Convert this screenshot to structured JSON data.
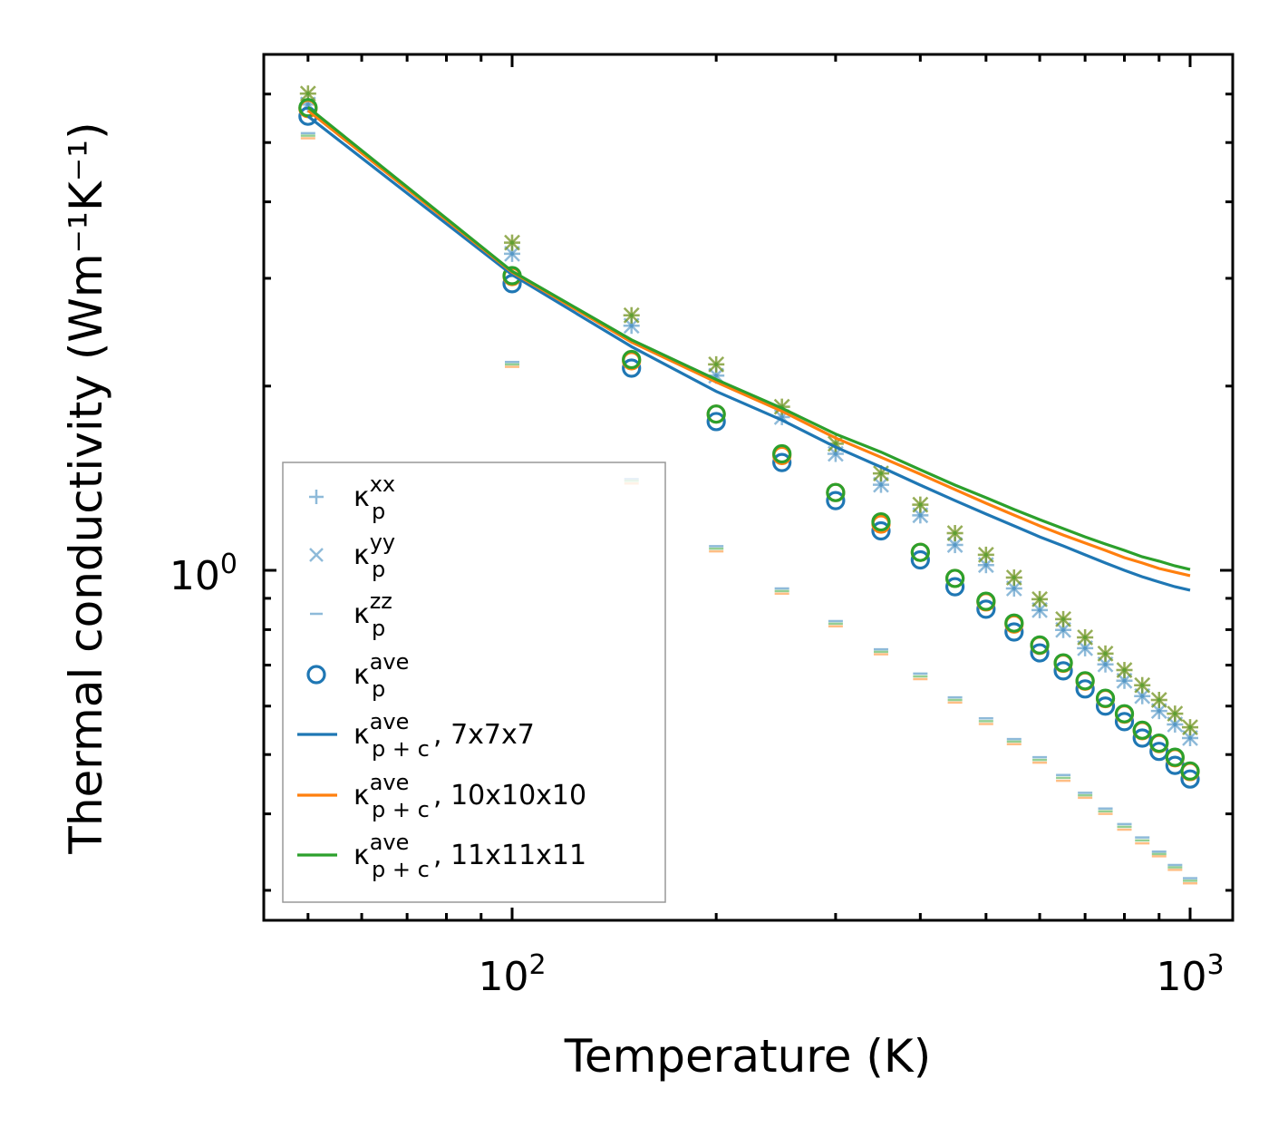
{
  "chart_data": {
    "type": "scatter",
    "xscale": "log",
    "yscale": "log",
    "xlabel": "Temperature (K)",
    "ylabel": "Thermal conductivity (Wm⁻¹K⁻¹)",
    "xlim": [
      43,
      1156
    ],
    "ylim": [
      0.268,
      6.97
    ],
    "x_major_ticks": [
      {
        "value": 100,
        "base": "10",
        "exp": "2"
      },
      {
        "value": 1000,
        "base": "10",
        "exp": "3"
      }
    ],
    "x_minor_ticks": [
      50,
      60,
      70,
      80,
      90,
      200,
      300,
      400,
      500,
      600,
      700,
      800,
      900
    ],
    "y_major_ticks": [
      {
        "value": 1,
        "base": "10",
        "exp": "0"
      }
    ],
    "y_minor_ticks": [
      0.3,
      0.4,
      0.5,
      0.6,
      0.7,
      0.8,
      0.9,
      2,
      3,
      4,
      5,
      6
    ],
    "x": [
      50,
      100,
      150,
      200,
      250,
      300,
      350,
      400,
      450,
      500,
      550,
      600,
      650,
      700,
      750,
      800,
      850,
      900,
      950,
      1000
    ],
    "meshes": [
      {
        "name": "7x7x7",
        "color": "#1f77b4",
        "xx": [
          5.77,
          3.29,
          2.51,
          2.08,
          1.78,
          1.55,
          1.38,
          1.23,
          1.1,
          1.02,
          0.934,
          0.861,
          0.799,
          0.746,
          0.702,
          0.66,
          0.623,
          0.589,
          0.56,
          0.532
        ],
        "yy": [
          5.77,
          3.29,
          2.51,
          2.08,
          1.78,
          1.55,
          1.38,
          1.23,
          1.1,
          1.02,
          0.934,
          0.861,
          0.799,
          0.746,
          0.702,
          0.66,
          0.623,
          0.589,
          0.56,
          0.532
        ],
        "zz": [
          5.18,
          2.19,
          1.41,
          1.095,
          0.934,
          0.826,
          0.743,
          0.678,
          0.62,
          0.573,
          0.53,
          0.495,
          0.463,
          0.433,
          0.408,
          0.385,
          0.366,
          0.347,
          0.33,
          0.314
        ],
        "ave": [
          5.52,
          2.94,
          2.14,
          1.75,
          1.5,
          1.3,
          1.16,
          1.04,
          0.94,
          0.864,
          0.793,
          0.733,
          0.685,
          0.64,
          0.6,
          0.566,
          0.532,
          0.506,
          0.48,
          0.456
        ],
        "p_plus_c": [
          5.52,
          3.04,
          2.32,
          1.96,
          1.76,
          1.59,
          1.475,
          1.378,
          1.3,
          1.236,
          1.182,
          1.134,
          1.096,
          1.06,
          1.028,
          1.0,
          0.976,
          0.957,
          0.94,
          0.928
        ]
      },
      {
        "name": "10x10x10",
        "color": "#ff7f0e",
        "xx": [
          6.01,
          3.43,
          2.61,
          2.17,
          1.85,
          1.61,
          1.44,
          1.28,
          1.15,
          1.06,
          0.973,
          0.897,
          0.832,
          0.777,
          0.731,
          0.687,
          0.649,
          0.614,
          0.583,
          0.554
        ],
        "yy": [
          6.01,
          3.43,
          2.61,
          2.17,
          1.85,
          1.61,
          1.44,
          1.28,
          1.15,
          1.06,
          0.973,
          0.897,
          0.832,
          0.777,
          0.731,
          0.687,
          0.649,
          0.614,
          0.583,
          0.554
        ],
        "zz": [
          5.08,
          2.15,
          1.386,
          1.074,
          0.916,
          0.81,
          0.729,
          0.664,
          0.608,
          0.561,
          0.52,
          0.485,
          0.453,
          0.425,
          0.4,
          0.377,
          0.358,
          0.341,
          0.324,
          0.308
        ],
        "ave": [
          5.68,
          3.02,
          2.2,
          1.8,
          1.54,
          1.34,
          1.19,
          1.07,
          0.97,
          0.888,
          0.817,
          0.754,
          0.705,
          0.659,
          0.617,
          0.582,
          0.547,
          0.521,
          0.494,
          0.469
        ],
        "p_plus_c": [
          5.64,
          3.07,
          2.36,
          2.03,
          1.82,
          1.645,
          1.53,
          1.436,
          1.355,
          1.287,
          1.231,
          1.182,
          1.142,
          1.108,
          1.078,
          1.049,
          1.028,
          1.007,
          0.993,
          0.98
        ]
      },
      {
        "name": "11x11x11",
        "color": "#2ca02c",
        "xx": [
          6.01,
          3.43,
          2.61,
          2.17,
          1.85,
          1.61,
          1.44,
          1.28,
          1.15,
          1.06,
          0.973,
          0.897,
          0.832,
          0.777,
          0.731,
          0.687,
          0.649,
          0.614,
          0.583,
          0.554
        ],
        "yy": [
          6.01,
          3.43,
          2.61,
          2.17,
          1.85,
          1.61,
          1.44,
          1.28,
          1.15,
          1.06,
          0.973,
          0.897,
          0.832,
          0.777,
          0.731,
          0.687,
          0.649,
          0.614,
          0.583,
          0.554
        ],
        "zz": [
          5.13,
          2.17,
          1.4,
          1.085,
          0.925,
          0.818,
          0.736,
          0.671,
          0.614,
          0.567,
          0.525,
          0.49,
          0.458,
          0.429,
          0.404,
          0.381,
          0.362,
          0.344,
          0.327,
          0.311
        ],
        "ave": [
          5.7,
          3.03,
          2.21,
          1.8,
          1.55,
          1.34,
          1.2,
          1.07,
          0.97,
          0.89,
          0.82,
          0.755,
          0.706,
          0.66,
          0.618,
          0.583,
          0.548,
          0.522,
          0.495,
          0.47
        ],
        "p_plus_c": [
          5.71,
          3.08,
          2.38,
          2.05,
          1.84,
          1.67,
          1.56,
          1.46,
          1.378,
          1.314,
          1.257,
          1.21,
          1.17,
          1.134,
          1.104,
          1.078,
          1.052,
          1.035,
          1.017,
          1.003
        ]
      }
    ],
    "legend": {
      "placement": "lower-left",
      "entries": [
        {
          "marker": "plus",
          "base": "κ",
          "sub": "p",
          "sup": "xx",
          "suffix": ""
        },
        {
          "marker": "x",
          "base": "κ",
          "sub": "p",
          "sup": "yy",
          "suffix": ""
        },
        {
          "marker": "dash",
          "base": "κ",
          "sub": "p",
          "sup": "zz",
          "suffix": ""
        },
        {
          "marker": "circle",
          "base": "κ",
          "sub": "p",
          "sup": "ave",
          "suffix": ""
        },
        {
          "marker": "line",
          "color": "#1f77b4",
          "base": "κ",
          "sub": "p + c",
          "sup": "ave",
          "suffix": ", 7x7x7"
        },
        {
          "marker": "line",
          "color": "#ff7f0e",
          "base": "κ",
          "sub": "p + c",
          "sup": "ave",
          "suffix": ", 10x10x10"
        },
        {
          "marker": "line",
          "color": "#2ca02c",
          "base": "κ",
          "sub": "p + c",
          "sup": "ave",
          "suffix": ", 11x11x11"
        }
      ]
    }
  }
}
